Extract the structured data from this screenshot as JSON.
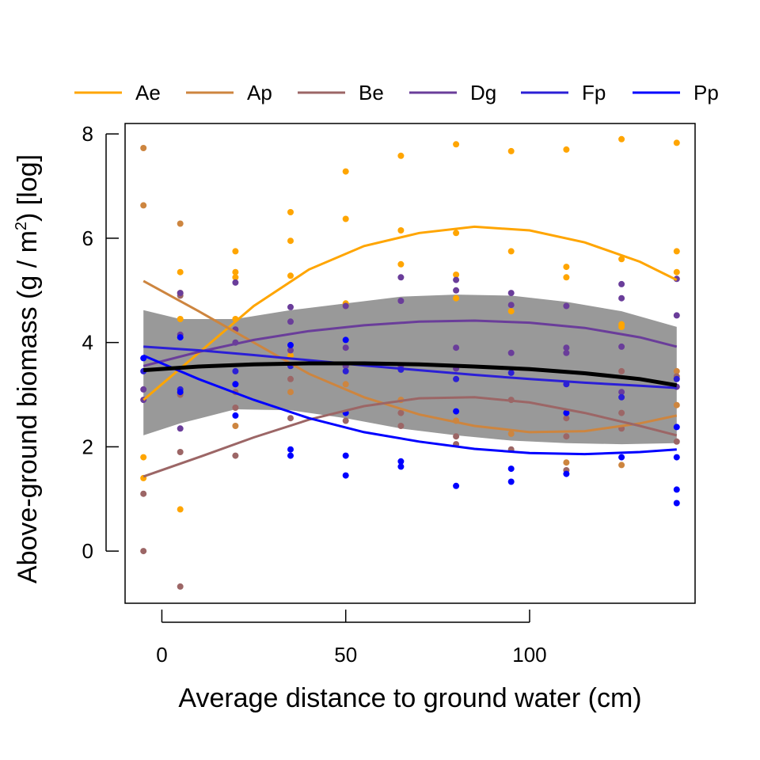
{
  "chart_data": {
    "type": "scatter",
    "xlabel": "Average distance to ground water (cm)",
    "ylabel": {
      "prefix": "Above-ground biomass ",
      "paren_open": "(",
      "unit_base": "g / m",
      "unit_exp": "2",
      "paren_close": ")",
      "suffix": " [log]"
    },
    "xlim": [
      -10,
      145
    ],
    "ylim": [
      -1,
      8.2
    ],
    "x_ticks": [
      0,
      50,
      100
    ],
    "x_tick_labels": [
      "0",
      "50",
      "100"
    ],
    "y_ticks": [
      0,
      2,
      4,
      6,
      8
    ],
    "y_tick_labels": [
      "0",
      "2",
      "4",
      "6",
      "8"
    ],
    "grid": false,
    "legend_position": "top",
    "series": [
      {
        "name": "Ae",
        "color": "#FFA500",
        "points": [
          [
            -5,
            1.8
          ],
          [
            -5,
            1.4
          ],
          [
            5,
            5.35
          ],
          [
            5,
            4.45
          ],
          [
            5,
            0.8
          ],
          [
            20,
            5.75
          ],
          [
            20,
            5.35
          ],
          [
            20,
            5.25
          ],
          [
            20,
            4.45
          ],
          [
            35,
            6.5
          ],
          [
            35,
            5.95
          ],
          [
            35,
            5.28
          ],
          [
            35,
            3.75
          ],
          [
            50,
            7.28
          ],
          [
            50,
            6.37
          ],
          [
            50,
            4.75
          ],
          [
            50,
            4.7
          ],
          [
            65,
            7.58
          ],
          [
            65,
            6.15
          ],
          [
            65,
            5.5
          ],
          [
            80,
            7.8
          ],
          [
            80,
            6.1
          ],
          [
            80,
            5.3
          ],
          [
            80,
            4.85
          ],
          [
            95,
            7.67
          ],
          [
            95,
            5.75
          ],
          [
            95,
            4.6
          ],
          [
            110,
            7.7
          ],
          [
            110,
            5.45
          ],
          [
            110,
            5.25
          ],
          [
            125,
            7.9
          ],
          [
            125,
            5.6
          ],
          [
            125,
            4.35
          ],
          [
            125,
            4.3
          ],
          [
            140,
            7.83
          ],
          [
            140,
            5.75
          ],
          [
            140,
            5.35
          ]
        ],
        "fit": [
          [
            -5,
            2.9
          ],
          [
            10,
            3.8
          ],
          [
            25,
            4.7
          ],
          [
            40,
            5.4
          ],
          [
            55,
            5.85
          ],
          [
            70,
            6.1
          ],
          [
            85,
            6.22
          ],
          [
            100,
            6.15
          ],
          [
            115,
            5.92
          ],
          [
            130,
            5.55
          ],
          [
            140,
            5.2
          ]
        ]
      },
      {
        "name": "Ap",
        "color": "#CD853F",
        "points": [
          [
            -5,
            7.73
          ],
          [
            -5,
            6.63
          ],
          [
            5,
            6.28
          ],
          [
            5,
            4.95
          ],
          [
            20,
            2.4
          ],
          [
            35,
            3.05
          ],
          [
            50,
            3.2
          ],
          [
            65,
            2.9
          ],
          [
            80,
            2.5
          ],
          [
            95,
            2.25
          ],
          [
            110,
            1.7
          ],
          [
            125,
            1.65
          ],
          [
            140,
            3.45
          ],
          [
            140,
            2.8
          ]
        ],
        "fit": [
          [
            -5,
            5.18
          ],
          [
            10,
            4.6
          ],
          [
            25,
            4.0
          ],
          [
            40,
            3.4
          ],
          [
            55,
            2.95
          ],
          [
            70,
            2.62
          ],
          [
            85,
            2.4
          ],
          [
            100,
            2.28
          ],
          [
            115,
            2.3
          ],
          [
            130,
            2.45
          ],
          [
            140,
            2.6
          ]
        ]
      },
      {
        "name": "Be",
        "color": "#9C6666",
        "points": [
          [
            -5,
            1.1
          ],
          [
            -5,
            0.0
          ],
          [
            5,
            4.9
          ],
          [
            5,
            3.0
          ],
          [
            5,
            1.9
          ],
          [
            5,
            -0.68
          ],
          [
            20,
            3.05
          ],
          [
            20,
            2.75
          ],
          [
            20,
            1.83
          ],
          [
            35,
            3.3
          ],
          [
            35,
            2.55
          ],
          [
            50,
            3.55
          ],
          [
            50,
            2.5
          ],
          [
            65,
            2.65
          ],
          [
            65,
            2.4
          ],
          [
            80,
            2.2
          ],
          [
            80,
            2.05
          ],
          [
            95,
            2.9
          ],
          [
            95,
            1.95
          ],
          [
            110,
            2.55
          ],
          [
            110,
            2.2
          ],
          [
            110,
            1.55
          ],
          [
            125,
            3.45
          ],
          [
            125,
            2.65
          ],
          [
            125,
            2.35
          ],
          [
            140,
            3.35
          ],
          [
            140,
            2.1
          ]
        ],
        "fit": [
          [
            -5,
            1.43
          ],
          [
            10,
            1.8
          ],
          [
            25,
            2.18
          ],
          [
            40,
            2.52
          ],
          [
            55,
            2.78
          ],
          [
            70,
            2.93
          ],
          [
            85,
            2.95
          ],
          [
            100,
            2.85
          ],
          [
            115,
            2.65
          ],
          [
            130,
            2.4
          ],
          [
            140,
            2.22
          ]
        ]
      },
      {
        "name": "Dg",
        "color": "#6A3D9A",
        "points": [
          [
            -5,
            3.1
          ],
          [
            -5,
            2.9
          ],
          [
            5,
            4.95
          ],
          [
            5,
            4.15
          ],
          [
            5,
            2.35
          ],
          [
            20,
            5.15
          ],
          [
            20,
            4.25
          ],
          [
            20,
            4.0
          ],
          [
            20,
            3.2
          ],
          [
            35,
            4.68
          ],
          [
            35,
            4.4
          ],
          [
            35,
            3.85
          ],
          [
            50,
            4.7
          ],
          [
            50,
            3.9
          ],
          [
            50,
            3.55
          ],
          [
            65,
            5.25
          ],
          [
            65,
            4.8
          ],
          [
            65,
            3.55
          ],
          [
            80,
            5.2
          ],
          [
            80,
            5.0
          ],
          [
            80,
            3.9
          ],
          [
            80,
            3.5
          ],
          [
            95,
            4.95
          ],
          [
            95,
            4.72
          ],
          [
            95,
            3.8
          ],
          [
            110,
            4.7
          ],
          [
            110,
            3.9
          ],
          [
            110,
            3.8
          ],
          [
            125,
            5.12
          ],
          [
            125,
            4.85
          ],
          [
            125,
            3.92
          ],
          [
            125,
            3.05
          ],
          [
            140,
            5.22
          ],
          [
            140,
            4.52
          ],
          [
            140,
            3.15
          ]
        ],
        "fit": [
          [
            -5,
            3.55
          ],
          [
            10,
            3.82
          ],
          [
            25,
            4.05
          ],
          [
            40,
            4.22
          ],
          [
            55,
            4.33
          ],
          [
            70,
            4.4
          ],
          [
            85,
            4.42
          ],
          [
            100,
            4.38
          ],
          [
            115,
            4.28
          ],
          [
            130,
            4.1
          ],
          [
            140,
            3.92
          ]
        ]
      },
      {
        "name": "Fp",
        "color": "#2B1FD6",
        "points": [
          [
            -5,
            3.45
          ],
          [
            5,
            3.1
          ],
          [
            20,
            3.45
          ],
          [
            35,
            3.55
          ],
          [
            50,
            3.45
          ],
          [
            65,
            3.48
          ],
          [
            80,
            3.3
          ],
          [
            95,
            3.42
          ],
          [
            110,
            3.2
          ],
          [
            125,
            2.95
          ],
          [
            140,
            3.3
          ]
        ],
        "fit": [
          [
            -5,
            3.92
          ],
          [
            10,
            3.85
          ],
          [
            25,
            3.76
          ],
          [
            40,
            3.66
          ],
          [
            55,
            3.56
          ],
          [
            70,
            3.47
          ],
          [
            85,
            3.38
          ],
          [
            100,
            3.3
          ],
          [
            115,
            3.23
          ],
          [
            130,
            3.17
          ],
          [
            140,
            3.13
          ]
        ]
      },
      {
        "name": "Pp",
        "color": "#0000FF",
        "points": [
          [
            -5,
            3.7
          ],
          [
            5,
            4.1
          ],
          [
            5,
            3.05
          ],
          [
            20,
            3.2
          ],
          [
            20,
            2.6
          ],
          [
            35,
            3.95
          ],
          [
            35,
            1.95
          ],
          [
            35,
            1.83
          ],
          [
            50,
            4.05
          ],
          [
            50,
            2.65
          ],
          [
            50,
            1.83
          ],
          [
            50,
            1.45
          ],
          [
            65,
            1.72
          ],
          [
            65,
            1.62
          ],
          [
            80,
            2.68
          ],
          [
            80,
            1.25
          ],
          [
            95,
            1.58
          ],
          [
            95,
            1.33
          ],
          [
            110,
            2.65
          ],
          [
            110,
            1.48
          ],
          [
            125,
            1.8
          ],
          [
            140,
            2.38
          ],
          [
            140,
            1.8
          ],
          [
            140,
            1.18
          ],
          [
            140,
            0.92
          ]
        ],
        "fit": [
          [
            -5,
            3.75
          ],
          [
            10,
            3.3
          ],
          [
            25,
            2.9
          ],
          [
            40,
            2.55
          ],
          [
            55,
            2.28
          ],
          [
            70,
            2.1
          ],
          [
            85,
            1.96
          ],
          [
            100,
            1.88
          ],
          [
            115,
            1.86
          ],
          [
            130,
            1.9
          ],
          [
            140,
            1.95
          ]
        ]
      }
    ],
    "overall_fit": {
      "color": "#000000",
      "line": [
        [
          -5,
          3.47
        ],
        [
          10,
          3.54
        ],
        [
          25,
          3.58
        ],
        [
          40,
          3.6
        ],
        [
          55,
          3.6
        ],
        [
          70,
          3.58
        ],
        [
          85,
          3.54
        ],
        [
          100,
          3.49
        ],
        [
          115,
          3.41
        ],
        [
          130,
          3.3
        ],
        [
          140,
          3.18
        ]
      ],
      "ci_upper": [
        [
          -5,
          4.62
        ],
        [
          5,
          4.45
        ],
        [
          20,
          4.45
        ],
        [
          35,
          4.62
        ],
        [
          50,
          4.75
        ],
        [
          65,
          4.88
        ],
        [
          80,
          4.92
        ],
        [
          95,
          4.9
        ],
        [
          110,
          4.78
        ],
        [
          125,
          4.6
        ],
        [
          140,
          4.3
        ]
      ],
      "ci_lower": [
        [
          -5,
          2.22
        ],
        [
          5,
          2.45
        ],
        [
          20,
          2.72
        ],
        [
          35,
          2.7
        ],
        [
          50,
          2.55
        ],
        [
          65,
          2.35
        ],
        [
          80,
          2.22
        ],
        [
          95,
          2.12
        ],
        [
          110,
          2.07
        ],
        [
          125,
          2.05
        ],
        [
          140,
          2.07
        ]
      ],
      "ci_color": "#999999"
    }
  }
}
